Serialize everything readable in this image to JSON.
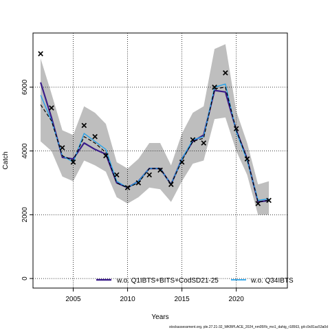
{
  "chart_data": {
    "type": "line",
    "xlabel": "Years",
    "ylabel": "Catch",
    "xlim": [
      2001.3,
      2024.7
    ],
    "ylim": [
      -300,
      7700
    ],
    "x_ticks": [
      2005,
      2010,
      2015,
      2020
    ],
    "y_ticks": [
      0,
      2000,
      4000,
      6000
    ],
    "grid": "dotted",
    "legend_position": "bottom",
    "observed": {
      "marker": "x",
      "x": [
        2002,
        2003,
        2004,
        2005,
        2006,
        2007,
        2008,
        2009,
        2010,
        2011,
        2012,
        2013,
        2014,
        2015,
        2016,
        2017,
        2018,
        2019,
        2020,
        2021,
        2022,
        2023
      ],
      "y": [
        7050,
        5350,
        4100,
        3650,
        4800,
        4450,
        3850,
        3250,
        2850,
        3000,
        3250,
        3400,
        2950,
        3650,
        4350,
        4250,
        6000,
        6450,
        4700,
        3750,
        2350,
        2450
      ]
    },
    "band": {
      "color": "#bebebe",
      "x": [
        2002,
        2003,
        2004,
        2005,
        2006,
        2007,
        2008,
        2009,
        2010,
        2011,
        2012,
        2013,
        2014,
        2015,
        2016,
        2017,
        2018,
        2019,
        2020,
        2021,
        2022,
        2023
      ],
      "upper": [
        6900,
        5800,
        4650,
        4500,
        5400,
        5200,
        4850,
        3650,
        3450,
        3750,
        4250,
        4250,
        3550,
        4550,
        5200,
        5400,
        7200,
        7350,
        5250,
        4250,
        2950,
        3050
      ],
      "lower": [
        4300,
        4000,
        3200,
        3050,
        3700,
        3550,
        3350,
        2550,
        2350,
        2550,
        2850,
        2800,
        2400,
        3050,
        3600,
        3700,
        5000,
        5050,
        4000,
        3250,
        2000,
        2000
      ]
    },
    "series": [
      {
        "name": "w.o. Q1IBTS+BITS+CodSD21-25",
        "color": "#3a1d8a",
        "width": 2.2,
        "dash": "",
        "x": [
          2002,
          2003,
          2004,
          2005,
          2006,
          2007,
          2008,
          2009,
          2010,
          2011,
          2012,
          2013,
          2014,
          2015,
          2016,
          2017,
          2018,
          2019,
          2020,
          2021,
          2022,
          2023
        ],
        "y": [
          6150,
          5050,
          3800,
          3750,
          4250,
          4050,
          3900,
          3000,
          2850,
          3050,
          3450,
          3450,
          2950,
          3750,
          4300,
          4500,
          5900,
          5850,
          4650,
          3750,
          2400,
          2450
        ]
      },
      {
        "name": "w.o. Q34IBTS",
        "color": "#29a3e8",
        "width": 1.4,
        "dash": "",
        "x": [
          2002,
          2003,
          2004,
          2005,
          2006,
          2007,
          2008,
          2009,
          2010,
          2011,
          2012,
          2013,
          2014,
          2015,
          2016,
          2017,
          2018,
          2019,
          2020,
          2021,
          2022,
          2023
        ],
        "y": [
          5750,
          4950,
          3850,
          3650,
          4550,
          4300,
          4050,
          3050,
          2850,
          3050,
          3450,
          3450,
          2950,
          3750,
          4350,
          4450,
          6000,
          6100,
          4600,
          3700,
          2450,
          2500
        ]
      },
      {
        "name": "",
        "color": "#000000",
        "width": 1.2,
        "dash": "5,3",
        "x": [
          2002,
          2003,
          2004,
          2005,
          2006,
          2007,
          2008,
          2009,
          2010,
          2011,
          2012,
          2013,
          2014,
          2015,
          2016,
          2017,
          2018,
          2019,
          2020,
          2021,
          2022,
          2023
        ],
        "y": [
          5450,
          4950,
          3850,
          3700,
          4450,
          4250,
          3950,
          3000,
          2850,
          3000,
          3450,
          3450,
          2950,
          3700,
          4300,
          4400,
          5950,
          6000,
          4650,
          3750,
          2400,
          2450
        ]
      }
    ]
  },
  "footer": "stockassessment.org, ple.27.21-32_WKBPLACE_2024_nm05Fb_mo1_dahig_r18563, git:c9c81ac53a0d"
}
